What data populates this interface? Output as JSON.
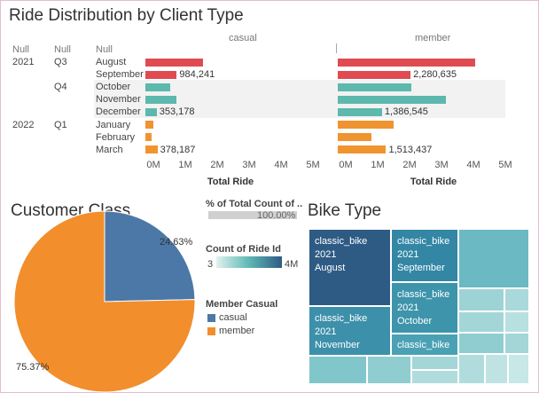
{
  "colors": {
    "q3": "#e04b52",
    "q4": "#5db8ad",
    "q1": "#f09430",
    "casual": "#4c78a8",
    "member": "#f28e2c"
  },
  "dashboard": {
    "ride_title": "Ride Distribution by Client Type",
    "customer_title": "Customer Class",
    "bike_title": "Bike Type"
  },
  "header": {
    "year": "Null",
    "quarter": "Null",
    "month": "Null"
  },
  "rows": [
    {
      "year": "2021",
      "quarter": "Q3",
      "month": "August",
      "casual": 1.8,
      "member": 4.3,
      "casual_label": "",
      "member_label": "",
      "color": "q3"
    },
    {
      "year": "",
      "quarter": "",
      "month": "September",
      "casual": 984241,
      "member": 2280635,
      "casual_label": "984,241",
      "member_label": "2,280,635",
      "color": "q3"
    },
    {
      "year": "",
      "quarter": "Q4",
      "month": "October",
      "casual": 0.78,
      "member": 2.3,
      "casual_label": "",
      "member_label": "",
      "color": "q4"
    },
    {
      "year": "",
      "quarter": "",
      "month": "November",
      "casual": 0.98,
      "member": 3.4,
      "casual_label": "",
      "member_label": "",
      "color": "q4"
    },
    {
      "year": "",
      "quarter": "",
      "month": "December",
      "casual": 353178,
      "member": 1386545,
      "casual_label": "353,178",
      "member_label": "1,386,545",
      "color": "q4"
    },
    {
      "year": "2022",
      "quarter": "Q1",
      "month": "January",
      "casual": 0.25,
      "member": 1.75,
      "casual_label": "",
      "member_label": "",
      "color": "q1"
    },
    {
      "year": "",
      "quarter": "",
      "month": "February",
      "casual": 0.2,
      "member": 1.05,
      "casual_label": "",
      "member_label": "",
      "color": "q1"
    },
    {
      "year": "",
      "quarter": "",
      "month": "March",
      "casual": 378187,
      "member": 1513437,
      "casual_label": "378,187",
      "member_label": "1,513,437",
      "color": "q1"
    }
  ],
  "chart_data": [
    {
      "type": "bar",
      "title": "Ride Distribution by Client Type",
      "series": [
        {
          "name": "casual"
        },
        {
          "name": "member"
        }
      ],
      "xlabel": "Total Ride",
      "xlim": [
        0,
        5000000
      ],
      "ticks": [
        "0M",
        "1M",
        "2M",
        "3M",
        "4M",
        "5M"
      ]
    },
    {
      "type": "pie",
      "title": "Customer Class",
      "slices": [
        {
          "name": "casual",
          "value": 24.63,
          "label": "24.63%"
        },
        {
          "name": "member",
          "value": 75.37,
          "label": "75.37%"
        }
      ]
    }
  ],
  "legend": {
    "pct_title": "% of Total Count of ..",
    "pct_value": "100.00%",
    "count_title": "Count of Ride Id",
    "count_min": "3",
    "count_max": "4M",
    "member_title": "Member Casual",
    "items": [
      "casual",
      "member"
    ]
  },
  "treemap": {
    "cells": [
      {
        "text": "classic_bike\n2021\nAugust",
        "color": "#2e5b84",
        "dark": false
      },
      {
        "text": "classic_bike\n2021\nSeptember",
        "color": "#3386a4",
        "dark": false
      },
      {
        "text": "classic_bike\n2021\nOctober",
        "color": "#3d94ab",
        "dark": false
      },
      {
        "text": "classic_bike\n2021\nNovember",
        "color": "#3d90aa",
        "dark": false
      },
      {
        "text": "classic_bike",
        "color": "#4ba1b4",
        "dark": false
      }
    ]
  }
}
